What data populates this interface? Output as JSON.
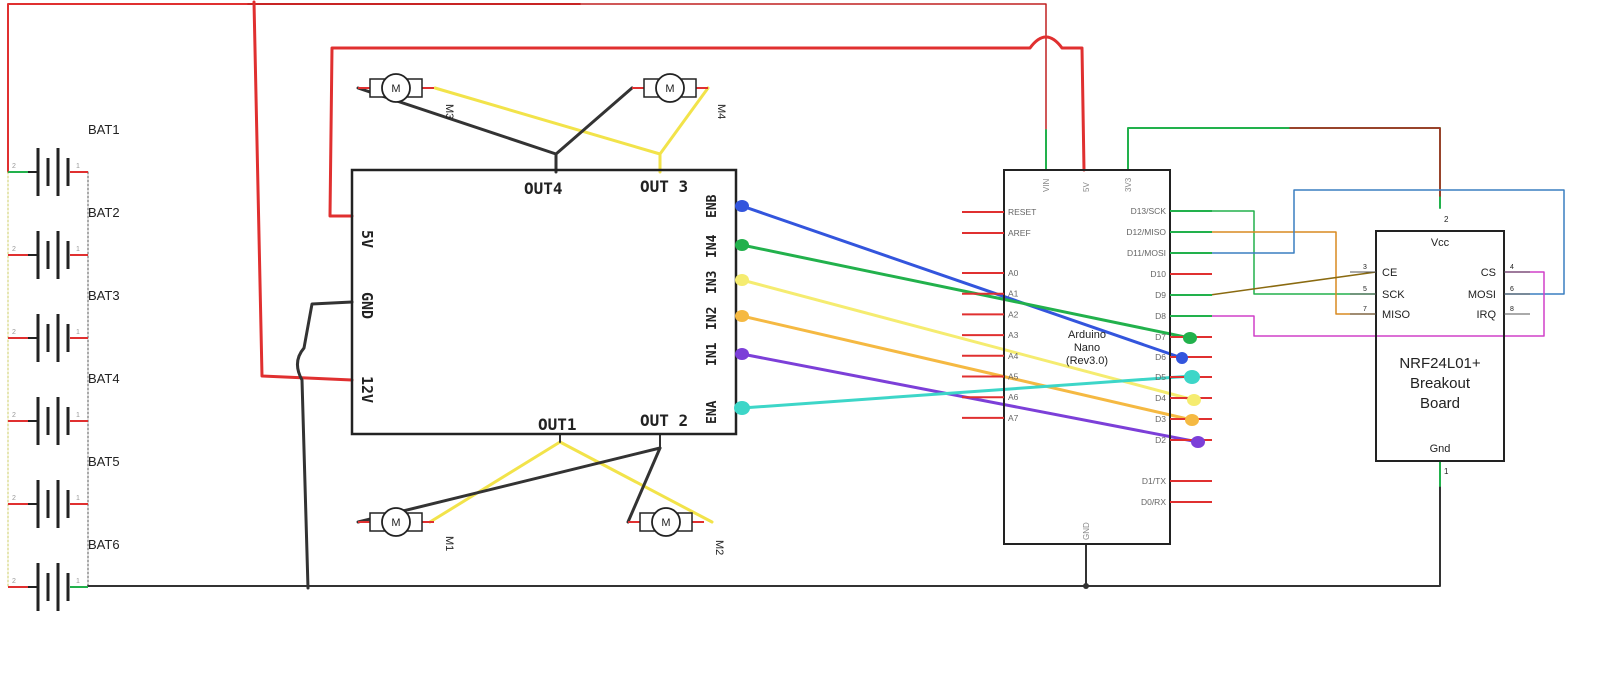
{
  "batteries": {
    "labels": [
      "BAT1",
      "BAT2",
      "BAT3",
      "BAT4",
      "BAT5",
      "BAT6"
    ],
    "pin_neg": "2",
    "pin_pos": "1"
  },
  "driver": {
    "left_pins": [
      "5V",
      "GND",
      "12V"
    ],
    "right_pins": [
      "ENB",
      "IN4",
      "IN3",
      "IN2",
      "IN1",
      "ENA"
    ],
    "top_outputs": [
      "OUT4",
      "OUT 3"
    ],
    "bottom_outputs": [
      "OUT1",
      "OUT 2"
    ]
  },
  "motors": {
    "labels": [
      "M3",
      "M4",
      "M1",
      "M2"
    ],
    "symbol": "M"
  },
  "arduino": {
    "title": "Arduino",
    "subtitle": "Nano",
    "revision": "(Rev3.0)",
    "top_pins": [
      "VIN",
      "5V",
      "3V3"
    ],
    "left_pins": [
      "RESET",
      "AREF",
      "A0",
      "A1",
      "A2",
      "A3",
      "A4",
      "A5",
      "A6",
      "A7"
    ],
    "right_pins": [
      "D13/SCK",
      "D12/MISO",
      "D11/MOSI",
      "D10",
      "D9",
      "D8",
      "D7",
      "D6",
      "D5",
      "D4",
      "D3",
      "D2",
      "D1/TX",
      "D0/RX"
    ],
    "bottom_pin": "GND"
  },
  "nrf": {
    "title_line1": "NRF24L01+",
    "title_line2": "Breakout",
    "title_line3": "Board",
    "vcc": "Vcc",
    "vcc_num": "2",
    "gnd": "Gnd",
    "gnd_num": "1",
    "left_pins": [
      "CE",
      "SCK",
      "MISO"
    ],
    "left_nums": [
      "3",
      "5",
      "7"
    ],
    "right_pins": [
      "CS",
      "MOSI",
      "IRQ"
    ],
    "right_nums": [
      "4",
      "6",
      "8"
    ]
  },
  "colors": {
    "power": "#e03030",
    "ground": "#333333",
    "green": "#22b14c",
    "blue": "#3355dd",
    "yellow": "#f2e34a",
    "orange": "#f5b942",
    "purple": "#7c3fd8",
    "cyan": "#3dd6c8",
    "magenta": "#d040c8",
    "spi_blue": "#3a7fc0",
    "miso_orange": "#d88a20",
    "ce_brown": "#8a6a10"
  }
}
